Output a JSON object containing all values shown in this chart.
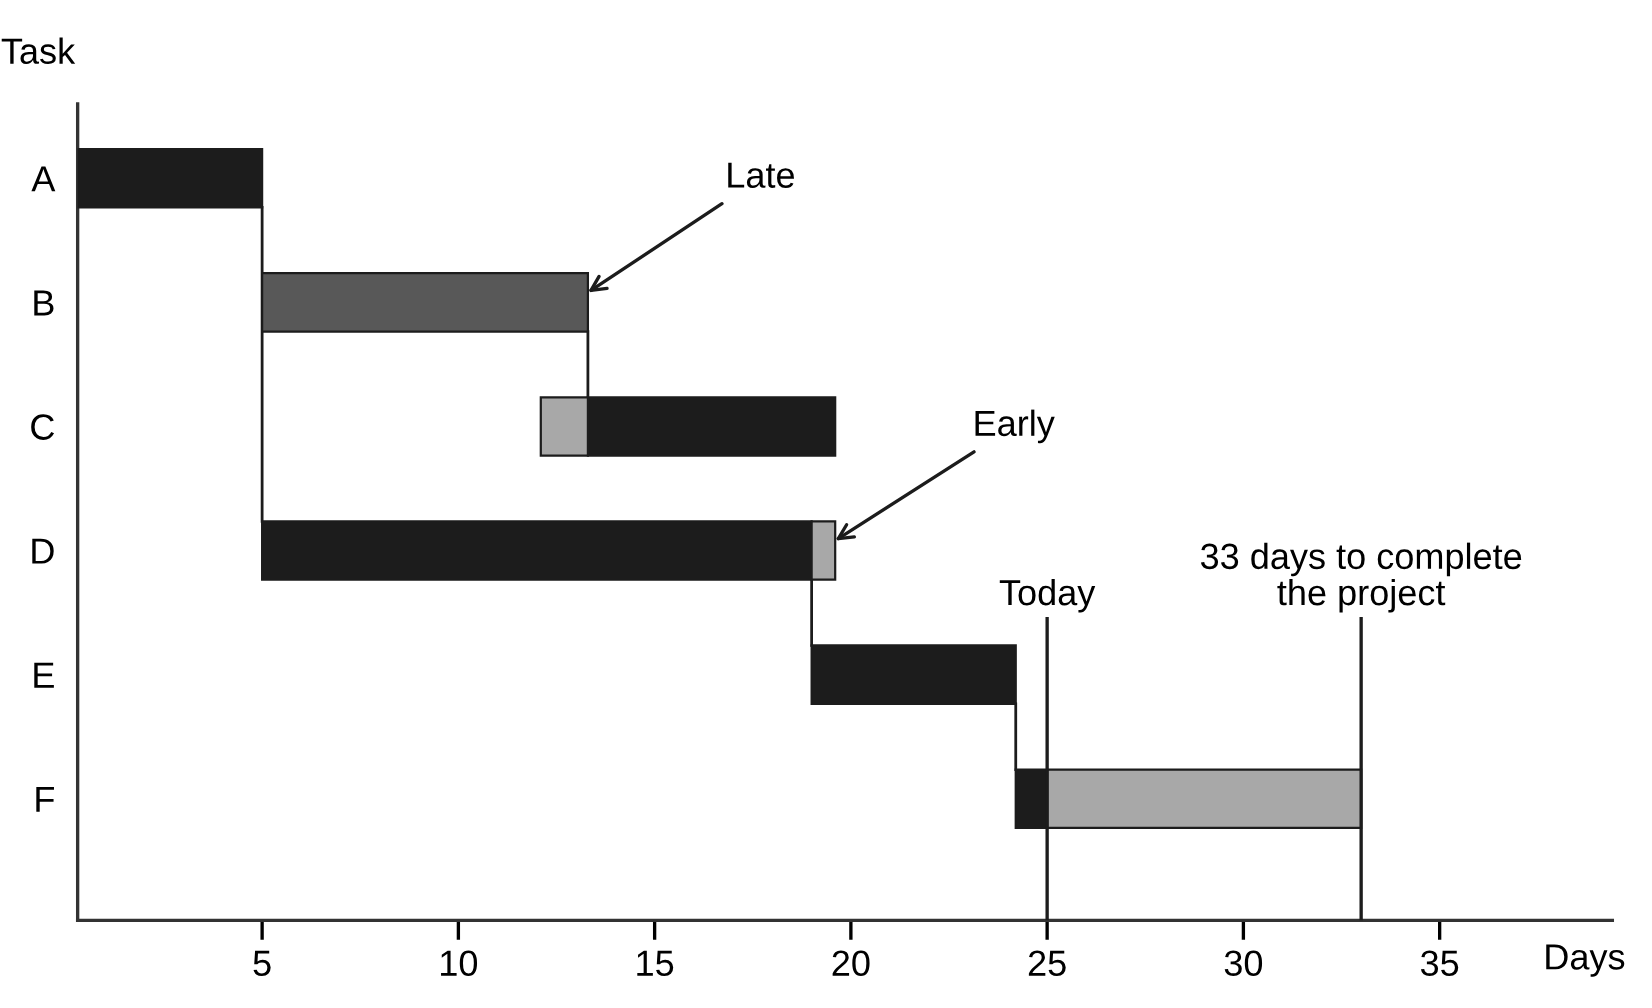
{
  "chart_data": {
    "type": "bar",
    "orientation": "horizontal",
    "xlabel": "Days",
    "ylabel": "Task",
    "categories": [
      "A",
      "B",
      "C",
      "D",
      "E",
      "F"
    ],
    "series": [
      {
        "color": "#1c1c1c",
        "values": [
          4.7,
          null,
          6.3,
          14.0,
          5.2,
          0.8
        ],
        "base": [
          0.3,
          null,
          13.3,
          5,
          19.0,
          24.2
        ]
      },
      {
        "color": "#585858",
        "values": [
          null,
          8.3,
          null,
          null,
          null,
          null
        ],
        "base": [
          null,
          5,
          null,
          null,
          null,
          null
        ]
      },
      {
        "color": "#a8a8a8",
        "values": [
          null,
          null,
          1.2,
          0.6,
          null,
          8
        ],
        "base": [
          null,
          null,
          12.1,
          19.0,
          null,
          25
        ]
      }
    ],
    "xlim": [
      0.3,
      39.4
    ],
    "xticks": [
      5,
      10,
      15,
      20,
      25,
      30,
      35
    ],
    "ref_lines": [
      {
        "axis": "x",
        "value": 25,
        "label": "Today",
        "color": "#1c1c1c"
      },
      {
        "axis": "x",
        "value": 33,
        "label": "33 days to complete\nthe project",
        "color": "#1c1c1c"
      }
    ],
    "annotations": [
      {
        "text": "Late",
        "x": 13.3,
        "y": "B"
      },
      {
        "text": "Early",
        "x": 19.6,
        "y": "D"
      }
    ],
    "grid": false
  }
}
